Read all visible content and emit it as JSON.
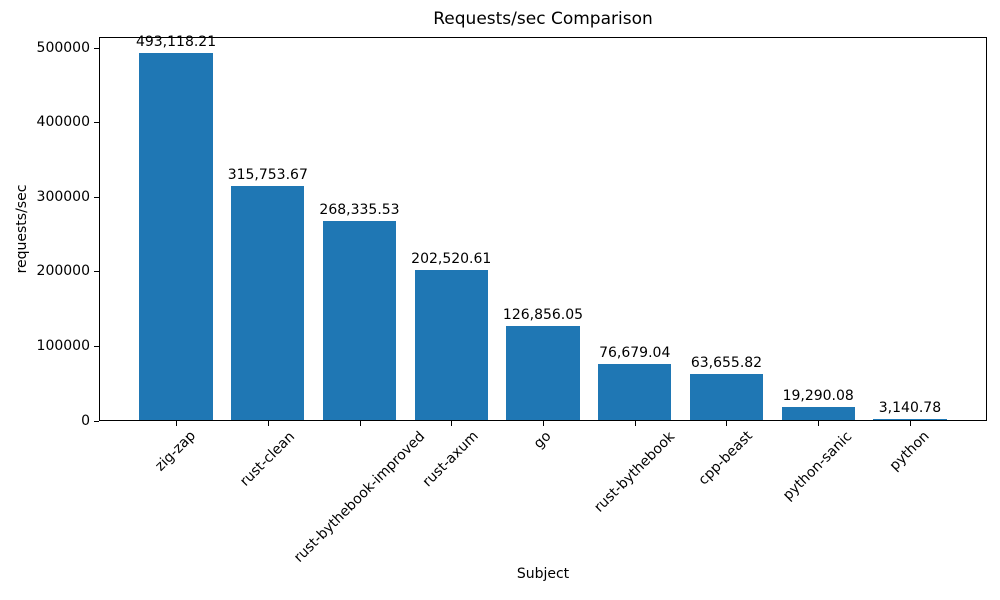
{
  "chart_data": {
    "type": "bar",
    "title": "Requests/sec Comparison",
    "xlabel": "Subject",
    "ylabel": "requests/sec",
    "categories": [
      "zig-zap",
      "rust-clean",
      "rust-bythebook-improved",
      "rust-axum",
      "go",
      "rust-bythebook",
      "cpp-beast",
      "python-sanic",
      "python"
    ],
    "values": [
      493118.21,
      315753.67,
      268335.53,
      202520.61,
      126856.05,
      76679.04,
      63655.82,
      19290.08,
      3140.78
    ],
    "value_labels": [
      "493,118.21",
      "315,753.67",
      "268,335.53",
      "202,520.61",
      "126,856.05",
      "76,679.04",
      "63,655.82",
      "19,290.08",
      "3,140.78"
    ],
    "yticks": [
      0,
      100000,
      200000,
      300000,
      400000,
      500000
    ],
    "ylim": [
      0,
      515000
    ],
    "bar_color": "#1f77b4",
    "x_tick_rotation": 45,
    "grid": false,
    "legend_position": "none"
  }
}
